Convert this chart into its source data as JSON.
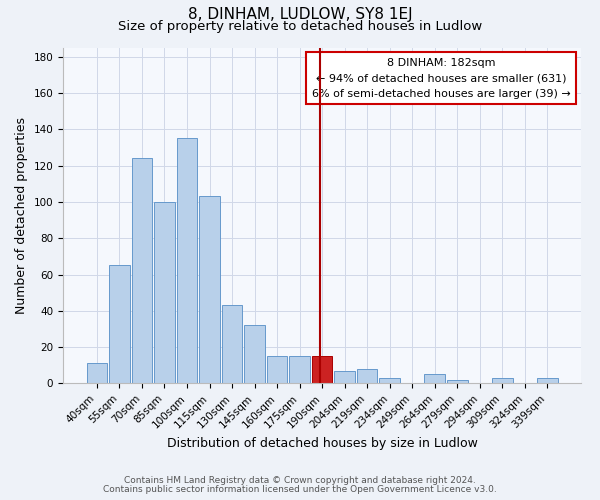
{
  "title": "8, DINHAM, LUDLOW, SY8 1EJ",
  "subtitle": "Size of property relative to detached houses in Ludlow",
  "xlabel": "Distribution of detached houses by size in Ludlow",
  "ylabel": "Number of detached properties",
  "categories": [
    "40sqm",
    "55sqm",
    "70sqm",
    "85sqm",
    "100sqm",
    "115sqm",
    "130sqm",
    "145sqm",
    "160sqm",
    "175sqm",
    "190sqm",
    "204sqm",
    "219sqm",
    "234sqm",
    "249sqm",
    "264sqm",
    "279sqm",
    "294sqm",
    "309sqm",
    "324sqm",
    "339sqm"
  ],
  "values": [
    11,
    65,
    124,
    100,
    135,
    103,
    43,
    32,
    15,
    15,
    15,
    7,
    8,
    3,
    0,
    5,
    2,
    0,
    3,
    0,
    3
  ],
  "bar_color": "#b8d0ea",
  "bar_edge_color": "#6699cc",
  "highlight_bar_index": 10,
  "highlight_bar_color": "#cc2222",
  "highlight_bar_edge_color": "#aa0000",
  "vline_position": 9.925,
  "vline_color": "#aa0000",
  "annotation_title": "8 DINHAM: 182sqm",
  "annotation_line1": "← 94% of detached houses are smaller (631)",
  "annotation_line2": "6% of semi-detached houses are larger (39) →",
  "ylim": [
    0,
    185
  ],
  "yticks": [
    0,
    20,
    40,
    60,
    80,
    100,
    120,
    140,
    160,
    180
  ],
  "footer1": "Contains HM Land Registry data © Crown copyright and database right 2024.",
  "footer2": "Contains public sector information licensed under the Open Government Licence v3.0.",
  "bg_color": "#eef2f8",
  "plot_bg_color": "#f5f8fd",
  "grid_color": "#d0d8e8",
  "title_fontsize": 11,
  "subtitle_fontsize": 9.5,
  "axis_label_fontsize": 9,
  "tick_fontsize": 7.5,
  "footer_fontsize": 6.5,
  "annot_fontsize": 8
}
